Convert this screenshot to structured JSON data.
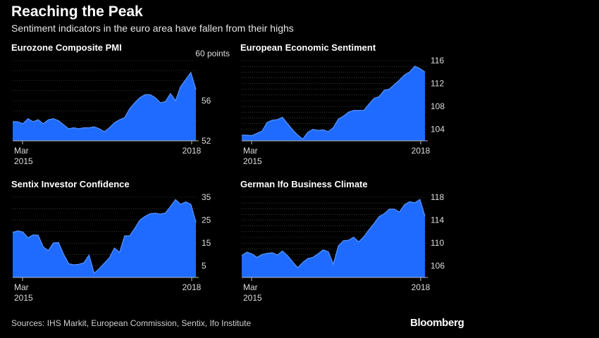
{
  "header": {
    "title": "Reaching the Peak",
    "subtitle": "Sentiment indicators in the euro area have fallen from their highs"
  },
  "footer": {
    "source": "Sources: IHS Markit, European Commission, Sentix, Ifo Institute",
    "brand": "Bloomberg"
  },
  "colors": {
    "area_fill": "#1f6bff",
    "line": "#4f8dff",
    "grid": "#5a5a5a",
    "axis": "#bbbbbb",
    "tick_text": "#dddddd"
  },
  "chart_data": [
    {
      "type": "area",
      "title": "Eurozone Composite PMI",
      "unit_label": "60 points",
      "x_start_label": [
        "Mar",
        "2015"
      ],
      "x_end_label": "2018",
      "ylim": [
        52,
        60
      ],
      "yticks": [
        52,
        56,
        60
      ],
      "grid_values": [
        53,
        54,
        55,
        57,
        58,
        59
      ],
      "values": [
        53.9,
        53.9,
        53.7,
        54.2,
        53.9,
        54.1,
        53.7,
        54.1,
        54.2,
        54.0,
        53.6,
        53.2,
        53.3,
        53.2,
        53.3,
        53.3,
        53.4,
        53.2,
        52.9,
        53.3,
        53.8,
        54.1,
        54.3,
        55.2,
        55.8,
        56.3,
        56.6,
        56.6,
        56.3,
        55.8,
        55.9,
        56.7,
        56.0,
        57.4,
        58.1,
        58.8,
        57.1
      ]
    },
    {
      "type": "area",
      "title": "European Economic Sentiment",
      "x_start_label": [
        "Mar",
        "2015"
      ],
      "x_end_label": "2018",
      "ylim": [
        102,
        116
      ],
      "yticks": [
        104,
        108,
        112,
        116
      ],
      "grid_values": [
        103,
        105,
        106,
        107,
        109,
        110,
        111,
        113,
        114,
        115
      ],
      "values": [
        103.0,
        103.0,
        102.9,
        103.3,
        103.7,
        105.2,
        105.6,
        105.7,
        106.1,
        105.0,
        103.9,
        103.0,
        102.3,
        103.5,
        104.0,
        103.8,
        103.9,
        103.6,
        104.3,
        105.8,
        106.3,
        107.0,
        107.3,
        107.3,
        107.3,
        108.4,
        109.4,
        109.7,
        110.8,
        111.0,
        111.8,
        112.6,
        113.5,
        114.0,
        115.0,
        114.6,
        114.0
      ]
    },
    {
      "type": "area",
      "title": "Sentix Investor Confidence",
      "x_start_label": [
        "Mar",
        "2015"
      ],
      "x_end_label": "2018",
      "ylim": [
        0,
        35
      ],
      "yticks": [
        5,
        15,
        25,
        35
      ],
      "grid_values": [
        10,
        20,
        30
      ],
      "values": [
        19.6,
        20.3,
        19.8,
        17.3,
        18.5,
        18.4,
        13.3,
        11.7,
        15.0,
        15.2,
        10.1,
        6.0,
        5.5,
        5.7,
        6.4,
        9.7,
        1.8,
        3.8,
        6.2,
        8.5,
        12.8,
        10.9,
        18.1,
        18.1,
        21.4,
        25.0,
        26.6,
        27.8,
        28.0,
        27.6,
        28.1,
        30.9,
        33.9,
        31.9,
        32.9,
        31.9,
        24.0
      ]
    },
    {
      "type": "area",
      "title": "German Ifo Business Climate",
      "x_start_label": [
        "Mar",
        "2015"
      ],
      "x_end_label": "2018",
      "ylim": [
        104,
        118
      ],
      "yticks": [
        106,
        110,
        114,
        118
      ],
      "grid_values": [
        105,
        107,
        108,
        109,
        111,
        112,
        113,
        115,
        116,
        117
      ],
      "values": [
        107.8,
        108.4,
        108.1,
        107.5,
        108.0,
        108.2,
        108.3,
        107.9,
        108.6,
        107.8,
        106.7,
        105.7,
        106.6,
        107.3,
        107.5,
        108.1,
        108.8,
        108.5,
        106.3,
        109.5,
        110.4,
        110.5,
        111.0,
        110.2,
        111.1,
        112.3,
        113.4,
        114.6,
        115.1,
        115.9,
        115.9,
        115.4,
        116.7,
        117.2,
        117.0,
        117.6,
        114.7
      ]
    }
  ]
}
